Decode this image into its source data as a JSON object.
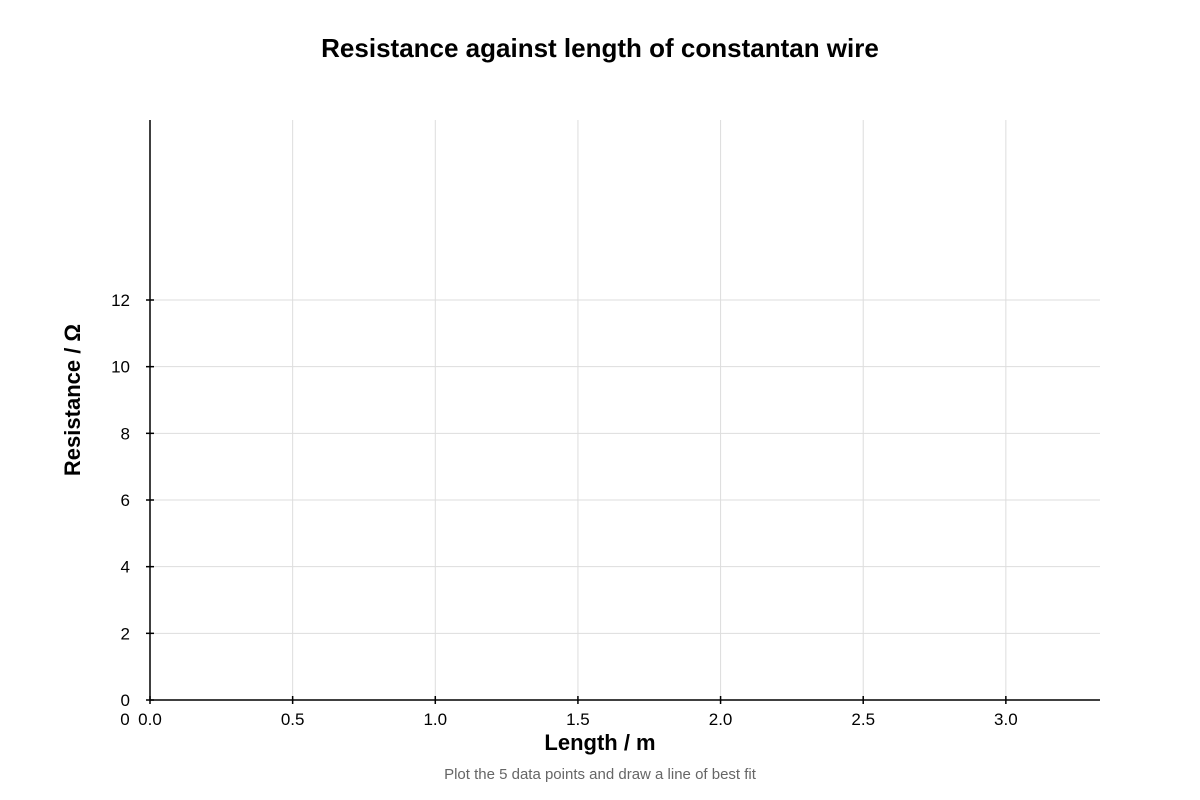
{
  "chart_data": {
    "type": "scatter",
    "title": "Resistance against length of constantan wire",
    "xlabel": "Length / m",
    "ylabel": "Resistance / Ω",
    "x_ticks": [
      "0.0",
      "0.5",
      "1.0",
      "1.5",
      "2.0",
      "2.5",
      "3.0"
    ],
    "x_tick_values": [
      0,
      0.5,
      1.0,
      1.5,
      2.0,
      2.5,
      3.0
    ],
    "y_ticks": [
      "0",
      "2",
      "4",
      "6",
      "8",
      "10",
      "12"
    ],
    "y_tick_values": [
      0,
      2,
      4,
      6,
      8,
      10,
      12
    ],
    "x_origin_label": "0",
    "xlim": [
      0,
      3.33
    ],
    "ylim": [
      0,
      17.4
    ],
    "grid": true,
    "series": [],
    "caption": "Plot the 5 data points and draw a line of best fit"
  },
  "colors": {
    "grid": "#dddddd",
    "axis": "#000000",
    "caption": "#666666"
  }
}
